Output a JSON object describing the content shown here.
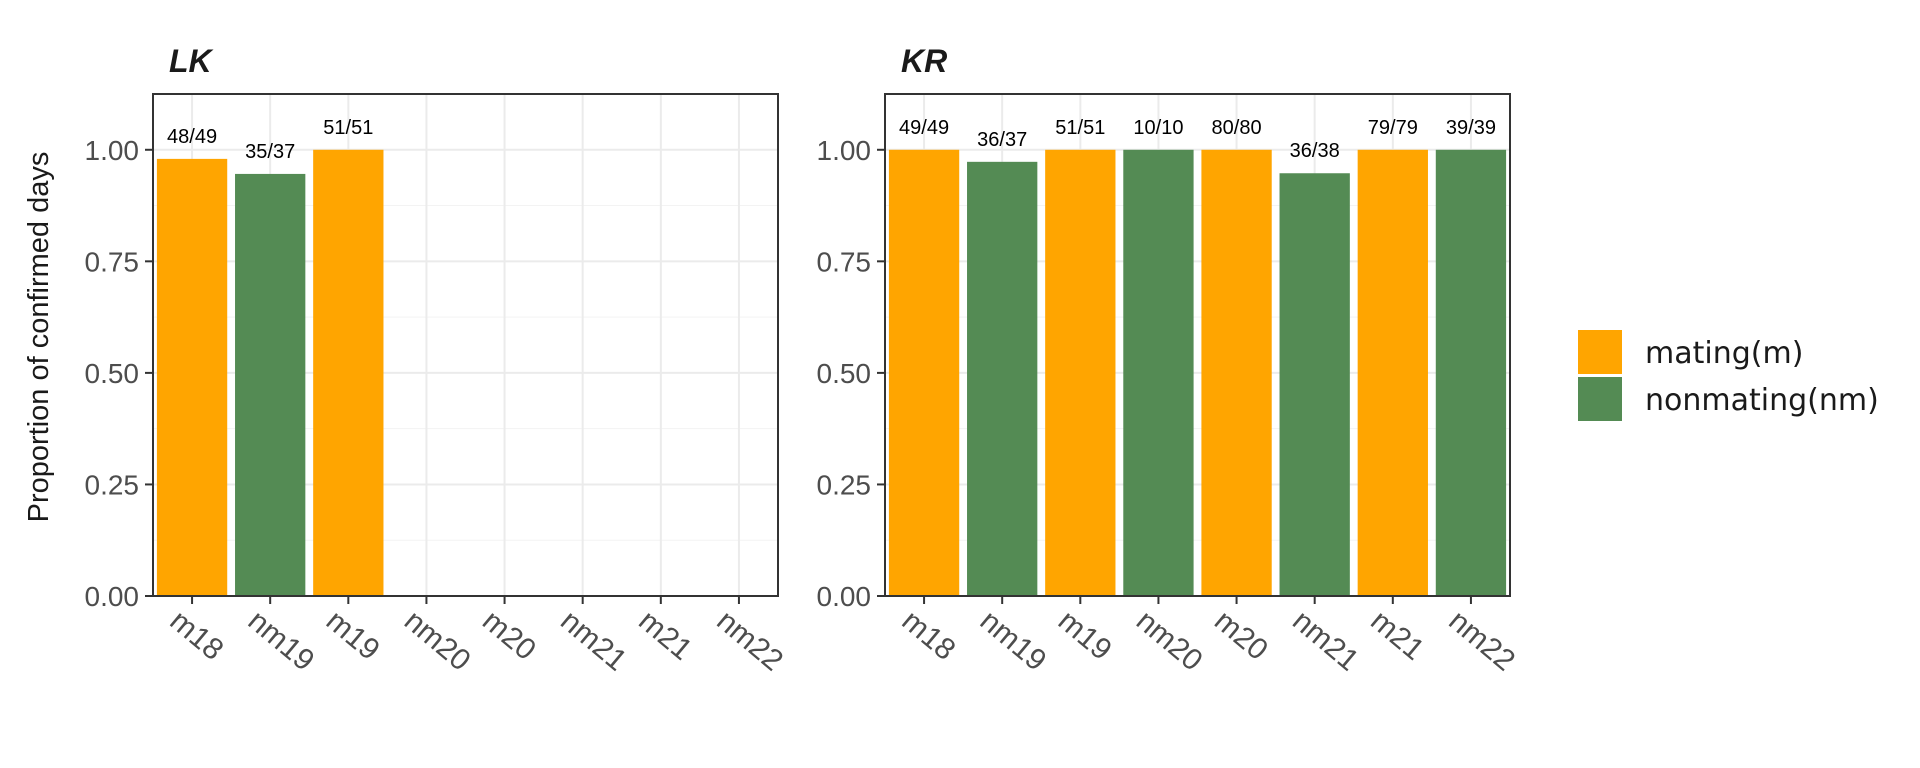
{
  "ylabel": "Proportion of confirmed days",
  "colors": {
    "mating": "#FFA500",
    "nonmating": "#548B54"
  },
  "legend": [
    {
      "key": "mating",
      "label": "mating(m)",
      "color": "#FFA500"
    },
    {
      "key": "nonmating",
      "label": "nonmating(nm)",
      "color": "#548B54"
    }
  ],
  "chart_data": [
    {
      "type": "bar",
      "title": "LK",
      "ylabel": "Proportion of confirmed days",
      "ylim": [
        0,
        1.125
      ],
      "yticks": [
        "0.00",
        "0.25",
        "0.50",
        "0.75",
        "1.00"
      ],
      "categories": [
        "m18",
        "nm19",
        "m19",
        "nm20",
        "m20",
        "nm21",
        "m21",
        "nm22"
      ],
      "values": [
        0.9796,
        0.9459,
        1.0,
        null,
        null,
        null,
        null,
        null
      ],
      "labels": [
        "48/49",
        "35/37",
        "51/51",
        "",
        "",
        "",
        "",
        ""
      ],
      "groups": [
        "mating",
        "nonmating",
        "mating",
        "nonmating",
        "mating",
        "nonmating",
        "mating",
        "nonmating"
      ],
      "grid": true
    },
    {
      "type": "bar",
      "title": "KR",
      "ylim": [
        0,
        1.125
      ],
      "yticks": [
        "0.00",
        "0.25",
        "0.50",
        "0.75",
        "1.00"
      ],
      "categories": [
        "m18",
        "nm19",
        "m19",
        "nm20",
        "m20",
        "nm21",
        "m21",
        "nm22"
      ],
      "values": [
        1.0,
        0.973,
        1.0,
        1.0,
        1.0,
        0.9474,
        1.0,
        1.0
      ],
      "labels": [
        "49/49",
        "36/37",
        "51/51",
        "10/10",
        "80/80",
        "36/38",
        "79/79",
        "39/39"
      ],
      "groups": [
        "mating",
        "nonmating",
        "mating",
        "nonmating",
        "mating",
        "nonmating",
        "mating",
        "nonmating"
      ],
      "grid": true
    }
  ]
}
